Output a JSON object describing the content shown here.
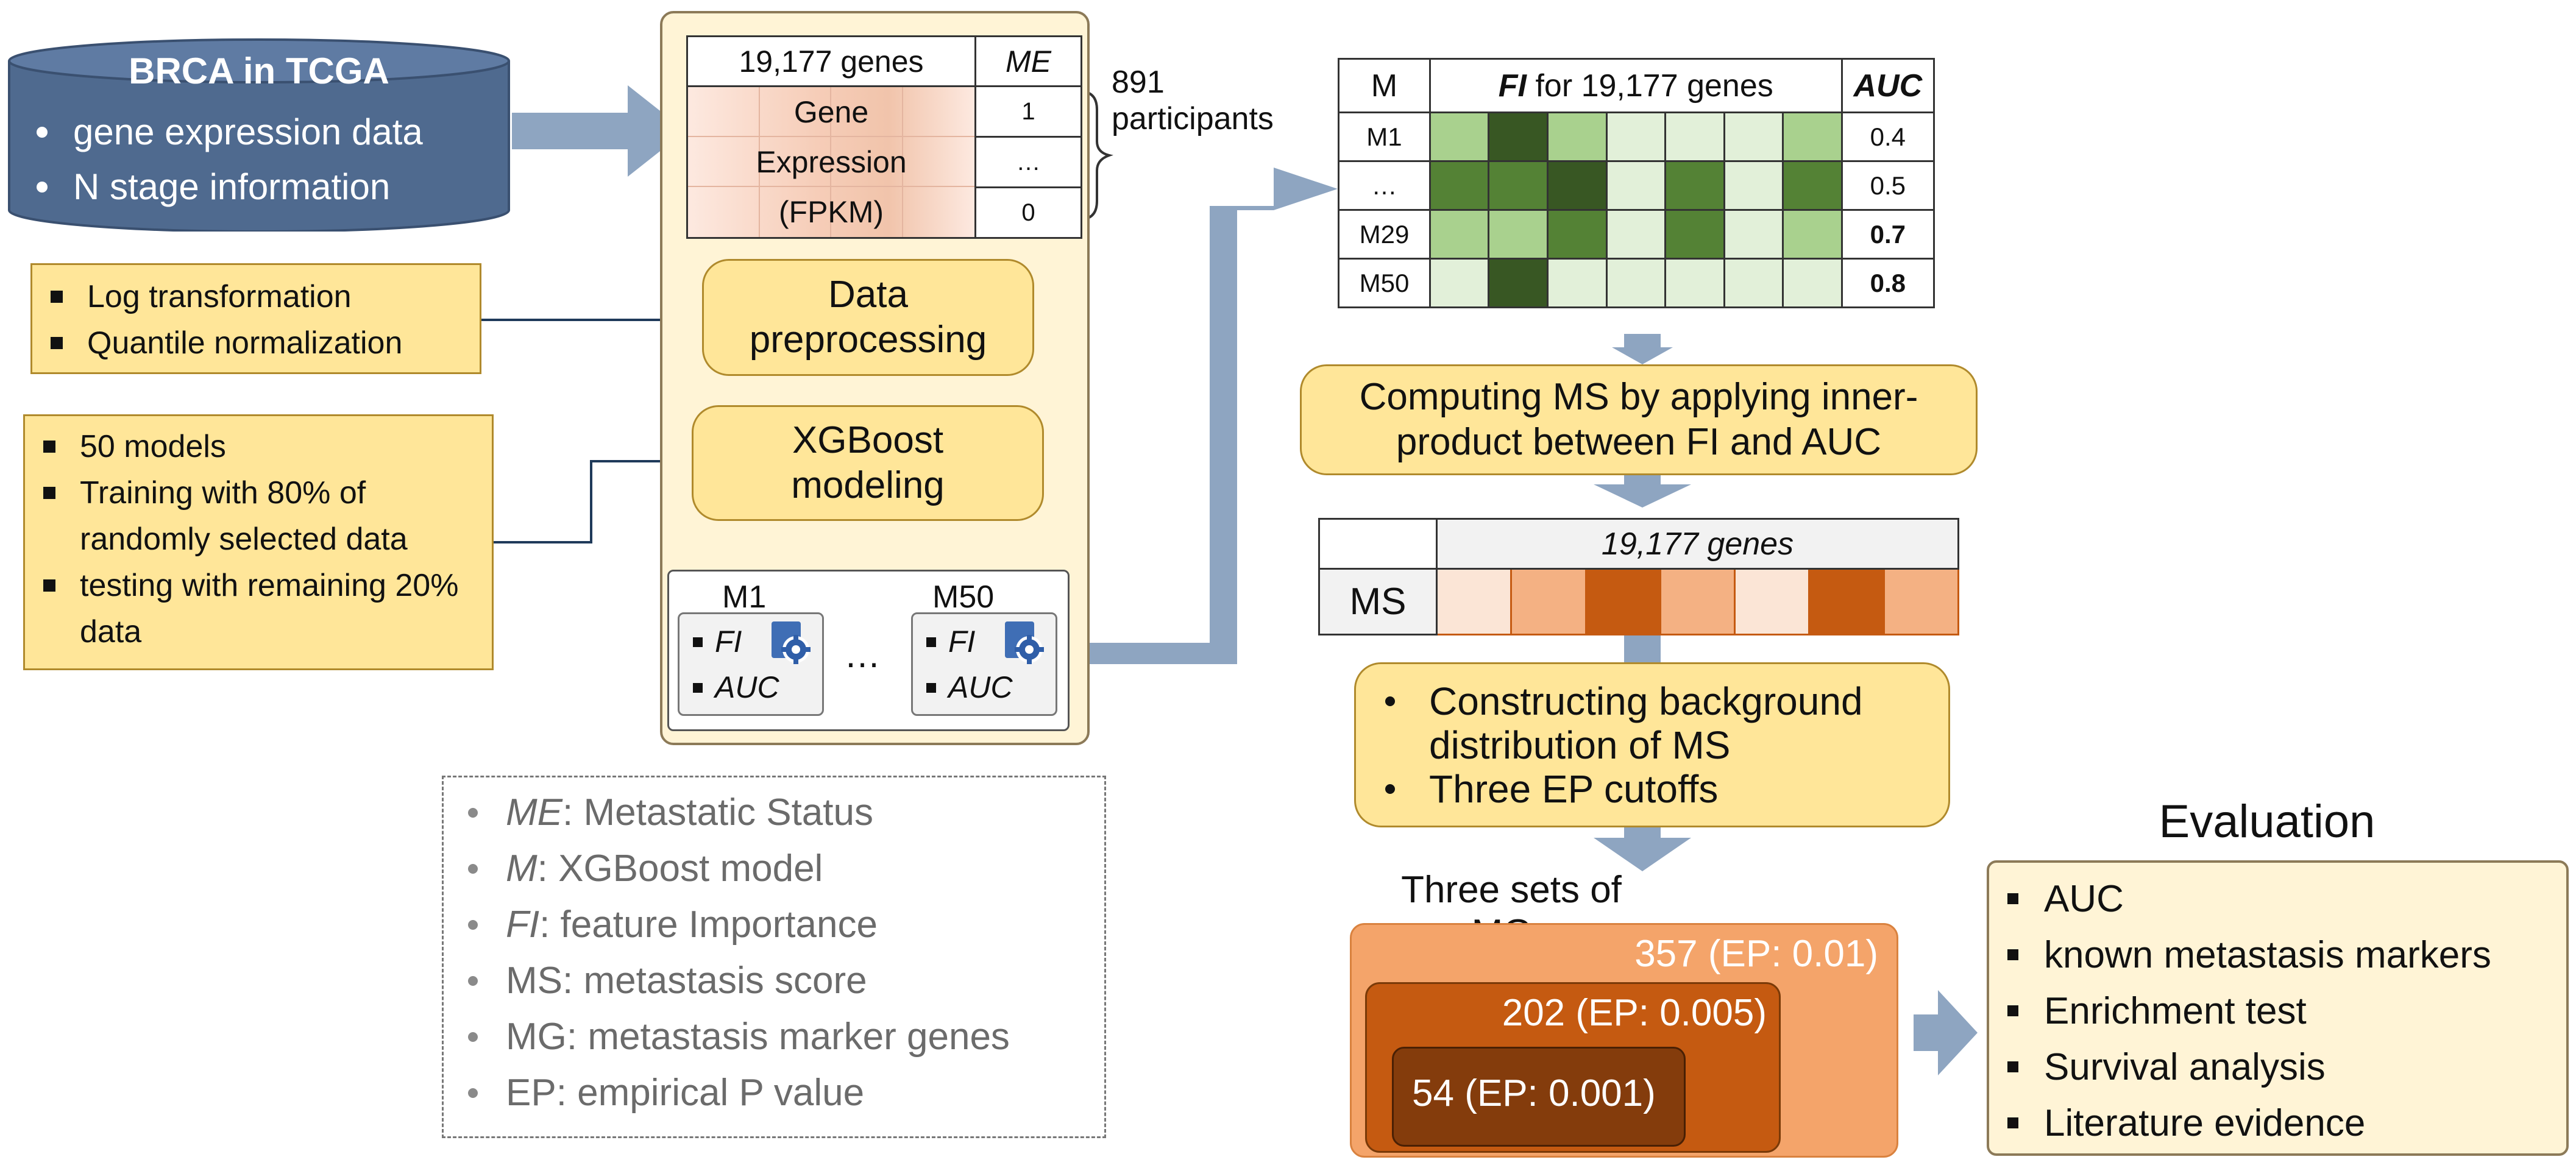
{
  "colors": {
    "arrow": "#8ea5c1",
    "yellow_fill": "#ffe699",
    "panel_fill": "#fff4d6",
    "db_fill": "#4f6a8f",
    "heat": [
      "#e2f0d9",
      "#a9d18e",
      "#548235",
      "#385723"
    ],
    "ms": [
      "#fbe5d6",
      "#f4b183",
      "#c55a11"
    ]
  },
  "tcga": {
    "title": "BRCA in TCGA",
    "items": [
      "gene expression data",
      "N stage information"
    ]
  },
  "preprocess_notes": [
    "Log transformation",
    "Quantile normalization"
  ],
  "model_notes": [
    "50 models",
    "Training with 80% of randomly selected data",
    "testing with remaining 20% data"
  ],
  "expr_table": {
    "genes_header": "19,177 genes",
    "me_header": "ME",
    "cell_lines": [
      "Gene",
      "Expression",
      "(FPKM)"
    ],
    "me_values": [
      "1",
      "…",
      "0"
    ],
    "participants_label": "891 participants"
  },
  "steps": {
    "preprocessing": "Data preprocessing",
    "modeling": "XGBoost modeling"
  },
  "models": {
    "first": {
      "name": "M1",
      "items": [
        "FI",
        "AUC"
      ]
    },
    "last": {
      "name": "M50",
      "items": [
        "FI",
        "AUC"
      ]
    },
    "ellipsis": "…",
    "gear_icon": "gear-document-icon"
  },
  "legend": [
    {
      "term": "ME",
      "desc": ": Metastatic Status"
    },
    {
      "term": "M",
      "desc": ": XGBoost model"
    },
    {
      "term": "FI",
      "desc": ": feature Importance"
    },
    {
      "term": "MS",
      "desc": ": metastasis score"
    },
    {
      "term": "MG",
      "desc": ": metastasis marker genes"
    },
    {
      "term": "EP",
      "desc": ": empirical P value"
    }
  ],
  "fi_table": {
    "m_header": "M",
    "fi_header_term": "FI",
    "fi_header_rest": " for 19,177 genes",
    "auc_header": "AUC",
    "rows": [
      {
        "model": "M1",
        "auc": "0.4",
        "bold": false,
        "cells": [
          1,
          3,
          1,
          0,
          0,
          0,
          1
        ]
      },
      {
        "model": "…",
        "auc": "0.5",
        "bold": false,
        "cells": [
          2,
          2,
          3,
          0,
          2,
          0,
          2
        ]
      },
      {
        "model": "M29",
        "auc": "0.7",
        "bold": true,
        "cells": [
          1,
          1,
          2,
          0,
          2,
          0,
          1
        ]
      },
      {
        "model": "M50",
        "auc": "0.8",
        "bold": true,
        "cells": [
          0,
          3,
          0,
          0,
          0,
          0,
          0
        ]
      }
    ]
  },
  "ms_step": "Computing MS by applying inner-product between FI and AUC",
  "ms_table": {
    "genes_header": "19,177 genes",
    "row_label": "MS",
    "cells": [
      0,
      1,
      2,
      1,
      0,
      2,
      1
    ]
  },
  "bg_step": [
    "Constructing background distribution of MS",
    "Three EP cutoffs"
  ],
  "mg": {
    "title": "Three sets of MGs",
    "sets": [
      "357 (EP: 0.01)",
      "202 (EP: 0.005)",
      "54 (EP: 0.001)"
    ]
  },
  "evaluation": {
    "title": "Evaluation",
    "items": [
      "AUC",
      "known metastasis markers",
      "Enrichment test",
      "Survival analysis",
      "Literature evidence"
    ]
  }
}
